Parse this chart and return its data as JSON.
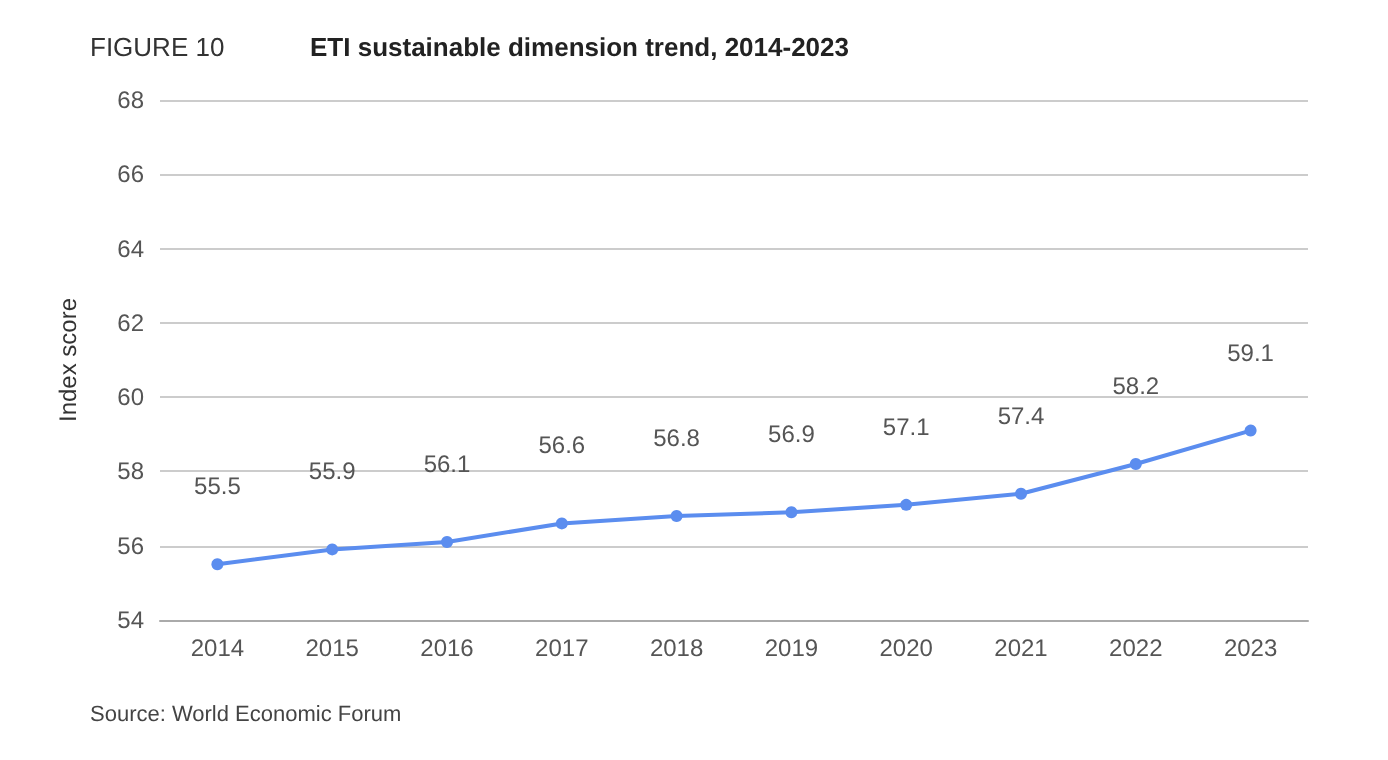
{
  "chart_data": {
    "type": "line",
    "title": "ETI sustainable dimension trend, 2014-2023",
    "subtitle": "FIGURE 10",
    "ylabel": "Index score",
    "categories": [
      "2014",
      "2015",
      "2016",
      "2017",
      "2018",
      "2019",
      "2020",
      "2021",
      "2022",
      "2023"
    ],
    "series": [
      {
        "color": "#5b8def",
        "values": [
          55.5,
          55.9,
          56.1,
          56.6,
          56.8,
          56.9,
          57.1,
          57.4,
          58.2,
          59.1
        ]
      }
    ],
    "ylim": [
      54,
      68
    ],
    "yticks": [
      54,
      56,
      58,
      60,
      62,
      64,
      66,
      68
    ],
    "grid": "y",
    "marker": "circle",
    "line_style": "solid",
    "data_labels": true,
    "annotations": [
      "Source: World Economic Forum"
    ]
  }
}
